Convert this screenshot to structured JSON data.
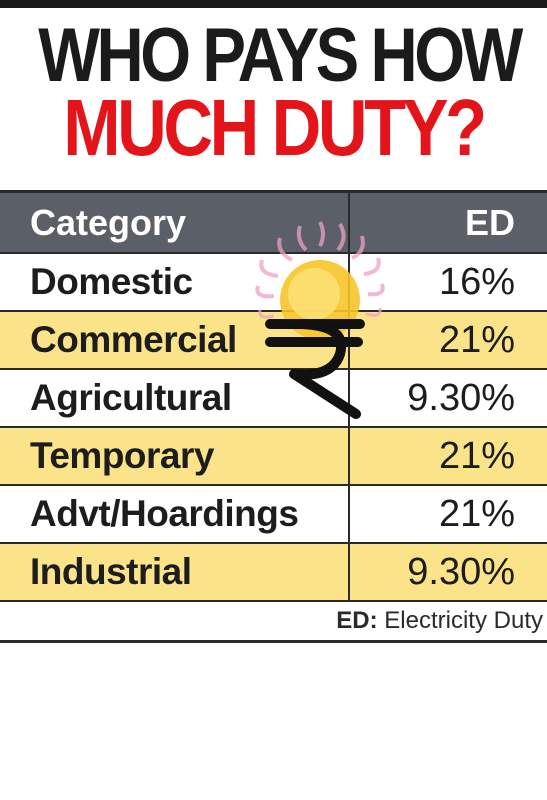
{
  "title": {
    "line1": "WHO PAYS HOW",
    "line2": "MUCH DUTY?"
  },
  "chart_data": {
    "type": "table",
    "columns": [
      "Category",
      "ED"
    ],
    "rows": [
      {
        "category": "Domestic",
        "value": "16%"
      },
      {
        "category": "Commercial",
        "value": "21%"
      },
      {
        "category": "Agricultural",
        "value": "9.30%"
      },
      {
        "category": "Temporary",
        "value": "21%"
      },
      {
        "category": "Advt/Hoardings",
        "value": "21%"
      },
      {
        "category": "Industrial",
        "value": "9.30%"
      }
    ],
    "footnote": {
      "key": "ED:",
      "text": "Electricity Duty"
    }
  },
  "colors": {
    "title_dark": "#1b1b1b",
    "title_red": "#e3151b",
    "header_bg": "#5b5f68",
    "row_highlight": "#fbe38a",
    "sun": "#f7c52a"
  },
  "icons": {
    "logo": "sun-rupee-icon"
  }
}
